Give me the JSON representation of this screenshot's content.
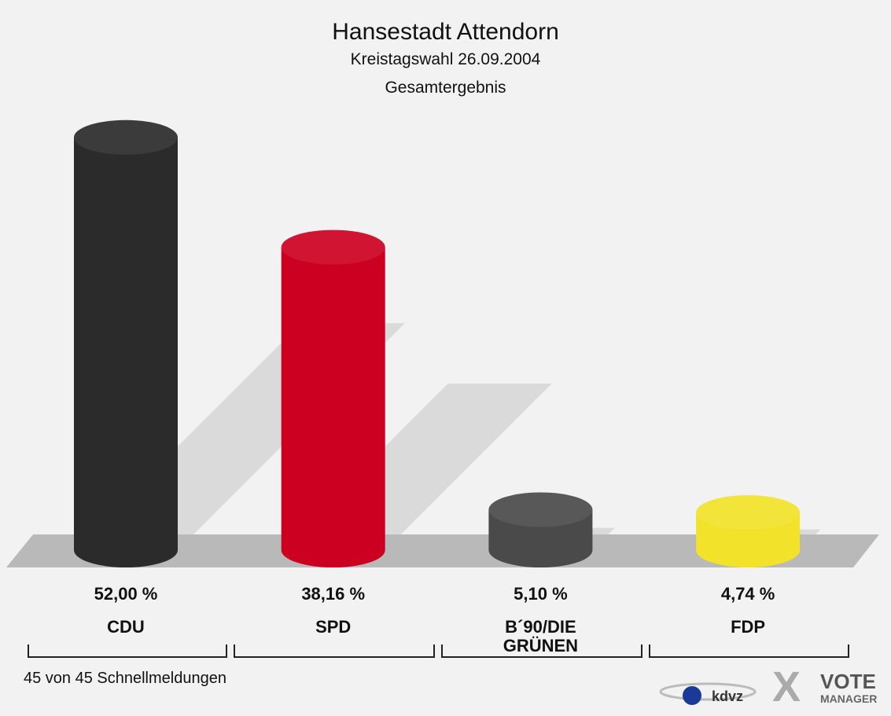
{
  "chart_data": {
    "type": "cylinder-bar",
    "title": "Hansestadt Attendorn",
    "subtitle": "Kreistagswahl 26.09.2004",
    "subtitle2": "Gesamtergebnis",
    "categories": [
      "CDU",
      "SPD",
      "B´90/DIE GRÜNEN",
      "FDP"
    ],
    "values": [
      52.0,
      38.16,
      5.1,
      4.74
    ],
    "value_labels": [
      "52,00 %",
      "38,16 %",
      "5,10 %",
      "4,74 %"
    ],
    "colors": [
      "#2b2b2b",
      "#cc0020",
      "#4a4a4a",
      "#f2e22a"
    ],
    "footer": "45 von 45 Schnellmeldungen",
    "logos": [
      "kdvz",
      "VOTE",
      "MANAGER"
    ]
  }
}
